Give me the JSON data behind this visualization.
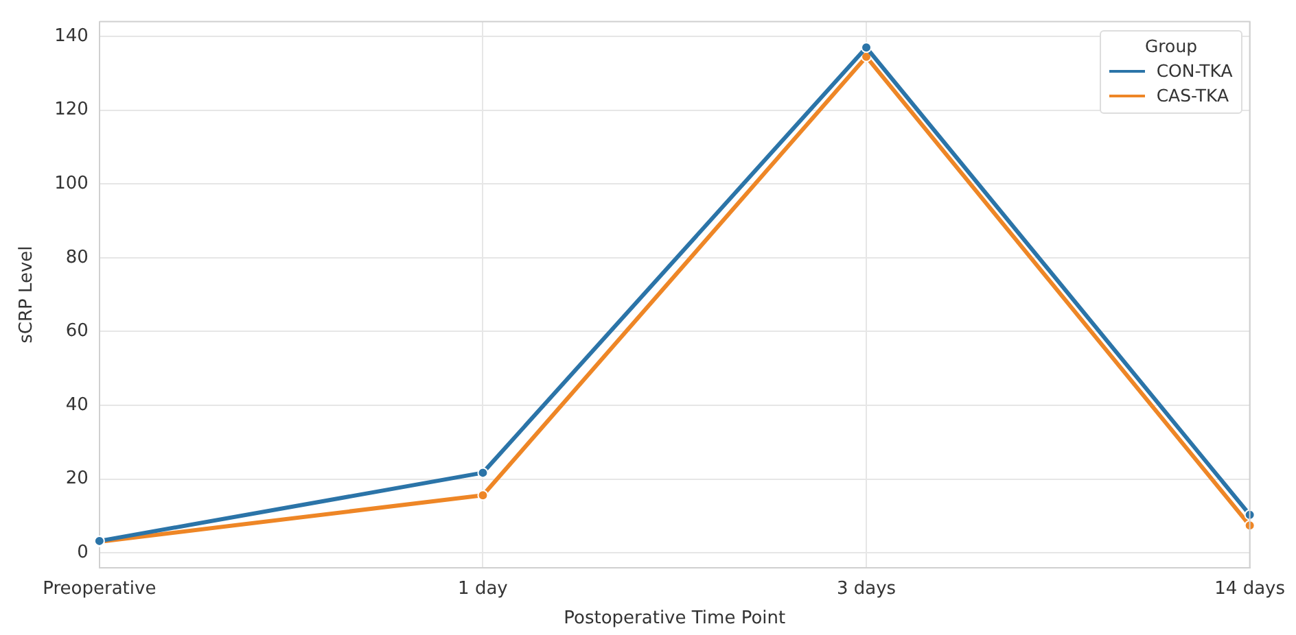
{
  "chart_data": {
    "type": "line",
    "xlabel": "Postoperative Time Point",
    "ylabel": "sCRP Level",
    "legend_title": "Group",
    "categories": [
      "Preoperative",
      "1 day",
      "3 days",
      "14 days"
    ],
    "series": [
      {
        "name": "CON-TKA",
        "color": "#2b74a8",
        "values": [
          3.2,
          21.7,
          137,
          10.3
        ]
      },
      {
        "name": "CAS-TKA",
        "color": "#ee8626",
        "values": [
          3.0,
          15.6,
          134.5,
          7.4
        ]
      }
    ],
    "ylim": [
      -4,
      144
    ],
    "yticks": [
      0,
      20,
      40,
      60,
      80,
      100,
      120,
      140
    ],
    "grid": true,
    "legend": "top right",
    "marker": "circle",
    "line_style": "solid"
  }
}
